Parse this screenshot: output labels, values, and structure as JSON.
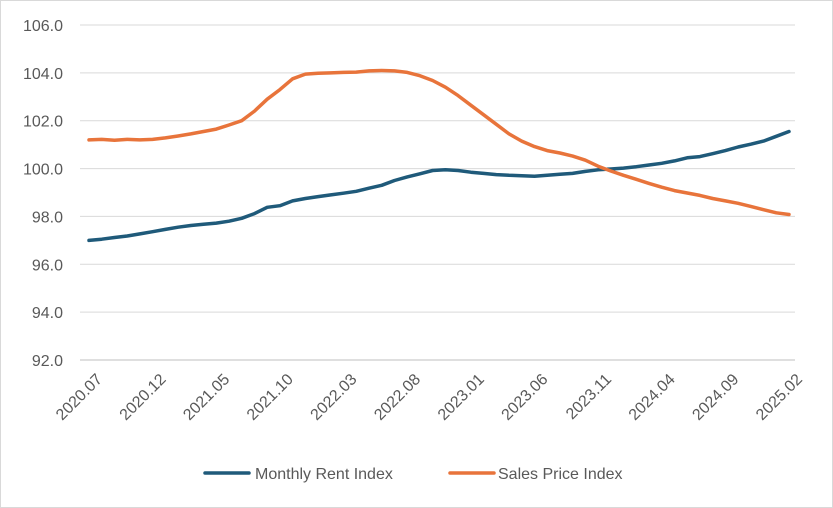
{
  "chart_data": {
    "type": "line",
    "title": "",
    "xlabel": "",
    "ylabel": "",
    "ylim": [
      92,
      106
    ],
    "y_ticks": [
      "92.0",
      "94.0",
      "96.0",
      "98.0",
      "100.0",
      "102.0",
      "104.0",
      "106.0"
    ],
    "x_tick_labels": [
      "2020.07",
      "2020.12",
      "2021.05",
      "2021.10",
      "2022.03",
      "2022.08",
      "2023.01",
      "2023.06",
      "2023.11",
      "2024.04",
      "2024.09",
      "2025.02"
    ],
    "x": [
      "2020.07",
      "2020.08",
      "2020.09",
      "2020.10",
      "2020.11",
      "2020.12",
      "2021.01",
      "2021.02",
      "2021.03",
      "2021.04",
      "2021.05",
      "2021.06",
      "2021.07",
      "2021.08",
      "2021.09",
      "2021.10",
      "2021.11",
      "2021.12",
      "2022.01",
      "2022.02",
      "2022.03",
      "2022.04",
      "2022.05",
      "2022.06",
      "2022.07",
      "2022.08",
      "2022.09",
      "2022.10",
      "2022.11",
      "2022.12",
      "2023.01",
      "2023.02",
      "2023.03",
      "2023.04",
      "2023.05",
      "2023.06",
      "2023.07",
      "2023.08",
      "2023.09",
      "2023.10",
      "2023.11",
      "2023.12",
      "2024.01",
      "2024.02",
      "2024.03",
      "2024.04",
      "2024.05",
      "2024.06",
      "2024.07",
      "2024.08",
      "2024.09",
      "2024.10",
      "2024.11",
      "2024.12",
      "2025.01",
      "2025.02"
    ],
    "grid": "horizontal",
    "legend_position": "bottom",
    "series": [
      {
        "name": "Monthly Rent Index",
        "color": "#1f5a7a",
        "values": [
          97.0,
          97.05,
          97.12,
          97.18,
          97.27,
          97.36,
          97.46,
          97.55,
          97.62,
          97.67,
          97.72,
          97.8,
          97.92,
          98.12,
          98.38,
          98.45,
          98.65,
          98.75,
          98.83,
          98.9,
          98.97,
          99.05,
          99.18,
          99.3,
          99.5,
          99.65,
          99.78,
          99.92,
          99.95,
          99.92,
          99.85,
          99.8,
          99.75,
          99.72,
          99.7,
          99.68,
          99.72,
          99.76,
          99.8,
          99.88,
          99.95,
          99.98,
          100.02,
          100.08,
          100.15,
          100.22,
          100.32,
          100.45,
          100.5,
          100.62,
          100.75,
          100.9,
          101.02,
          101.15,
          101.35,
          101.55
        ]
      },
      {
        "name": "Sales Price Index",
        "color": "#e8743b",
        "values": [
          101.2,
          101.22,
          101.18,
          101.22,
          101.2,
          101.22,
          101.28,
          101.36,
          101.45,
          101.55,
          101.65,
          101.82,
          102.0,
          102.4,
          102.9,
          103.3,
          103.75,
          103.95,
          103.98,
          104.0,
          104.02,
          104.03,
          104.08,
          104.1,
          104.08,
          104.02,
          103.88,
          103.68,
          103.4,
          103.05,
          102.65,
          102.25,
          101.85,
          101.45,
          101.15,
          100.92,
          100.75,
          100.65,
          100.52,
          100.35,
          100.1,
          99.9,
          99.72,
          99.55,
          99.38,
          99.22,
          99.08,
          98.98,
          98.88,
          98.75,
          98.65,
          98.55,
          98.42,
          98.28,
          98.15,
          98.08
        ]
      }
    ]
  }
}
